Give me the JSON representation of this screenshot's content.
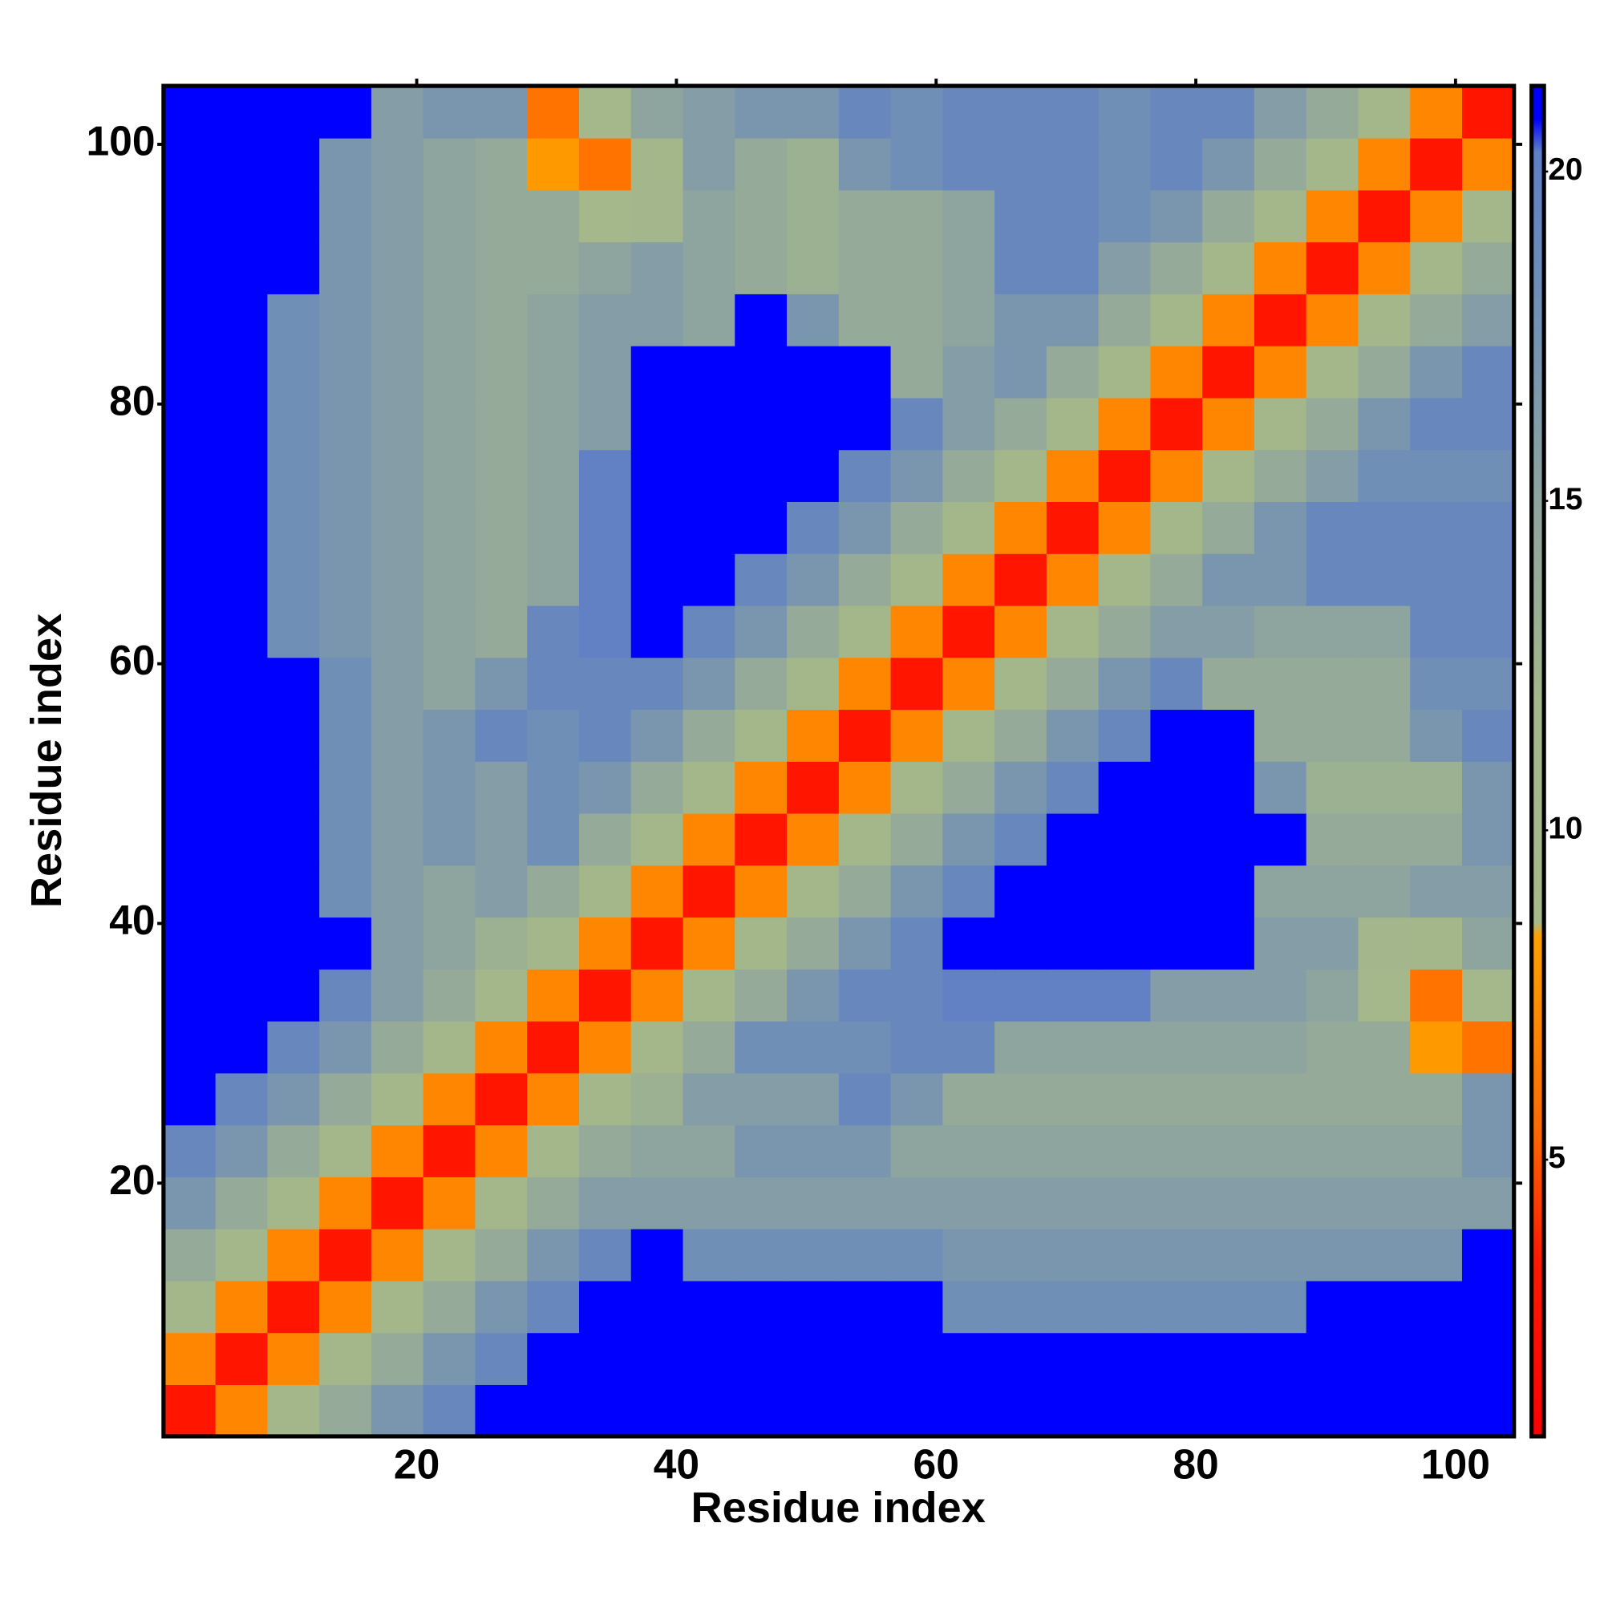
{
  "chart_data": {
    "type": "heatmap",
    "xlabel": "Residue index",
    "ylabel": "Residue index",
    "x_edges": [
      0.5,
      4.5,
      8.5,
      12.5,
      16.5,
      20.5,
      24.5,
      28.5,
      32.5,
      36.5,
      40.5,
      44.5,
      48.5,
      52.5,
      56.5,
      60.5,
      64.5,
      68.5,
      72.5,
      76.5,
      80.5,
      84.5,
      88.5,
      92.5,
      96.5,
      100.5,
      104.5
    ],
    "y_edges": [
      0.5,
      4.5,
      8.5,
      12.5,
      16.5,
      20.5,
      24.5,
      28.5,
      32.5,
      36.5,
      40.5,
      44.5,
      48.5,
      52.5,
      56.5,
      60.5,
      64.5,
      68.5,
      72.5,
      76.5,
      80.5,
      84.5,
      88.5,
      92.5,
      96.5,
      100.5,
      104.5
    ],
    "xlim": [
      0.5,
      104.5
    ],
    "ylim": [
      0.5,
      104.5
    ],
    "xticks": [
      20,
      40,
      60,
      80,
      100
    ],
    "yticks": [
      20,
      40,
      60,
      80,
      100
    ],
    "clim": [
      0.8,
      21.3
    ],
    "cticks": [
      5,
      10,
      15,
      20
    ],
    "colorscale": [
      [
        0.8,
        "#ff0000"
      ],
      [
        3.5,
        "#ff1a00"
      ],
      [
        5.5,
        "#ff6a00"
      ],
      [
        8.4,
        "#ffa000"
      ],
      [
        8.6,
        "#a6b98a"
      ],
      [
        12,
        "#a3b68c"
      ],
      [
        15,
        "#8ea49e"
      ],
      [
        18,
        "#6f8fb6"
      ],
      [
        20.3,
        "#5f7fc6"
      ],
      [
        20.8,
        "#0000ff"
      ],
      [
        21.3,
        "#0000ff"
      ]
    ],
    "values": [
      [
        3,
        7,
        11,
        14,
        17,
        19,
        21,
        21,
        21,
        21,
        21,
        21,
        21,
        21,
        21,
        21,
        21,
        21,
        21,
        21,
        21,
        21,
        21,
        21,
        21,
        21
      ],
      [
        7,
        3,
        7,
        11,
        14,
        17,
        19,
        21,
        21,
        21,
        21,
        21,
        21,
        21,
        21,
        21,
        21,
        21,
        21,
        21,
        21,
        21,
        21,
        21,
        21,
        21
      ],
      [
        11,
        7,
        3,
        7,
        11,
        14,
        17,
        19,
        21,
        21,
        21,
        21,
        21,
        21,
        21,
        18,
        18,
        18,
        18,
        18,
        18,
        18,
        21,
        21,
        21,
        21
      ],
      [
        14,
        11,
        7,
        3,
        7,
        11,
        14,
        17,
        19,
        21,
        18,
        18,
        18,
        18,
        18,
        17,
        17,
        17,
        17,
        17,
        17,
        17,
        17,
        17,
        17,
        21
      ],
      [
        17,
        14,
        11,
        7,
        3,
        7,
        11,
        14,
        16,
        16,
        16,
        16,
        16,
        16,
        16,
        16,
        16,
        16,
        16,
        16,
        16,
        16,
        16,
        16,
        16,
        16
      ],
      [
        19,
        17,
        14,
        11,
        7,
        3,
        7,
        11,
        14,
        15,
        15,
        17,
        17,
        17,
        15,
        15,
        15,
        15,
        15,
        15,
        15,
        15,
        15,
        15,
        15,
        17
      ],
      [
        21,
        19,
        17,
        14,
        11,
        7,
        3,
        7,
        11,
        13,
        16,
        16,
        16,
        19,
        17,
        14,
        14,
        14,
        14,
        14,
        14,
        14,
        14,
        14,
        14,
        17
      ],
      [
        21,
        21,
        19,
        17,
        14,
        11,
        7,
        3,
        7,
        11,
        14,
        18,
        18,
        18,
        19,
        19,
        15,
        15,
        15,
        15,
        15,
        15,
        14,
        14,
        8,
        6
      ],
      [
        21,
        21,
        21,
        19,
        16,
        14,
        11,
        7,
        3,
        7,
        11,
        14,
        17,
        19,
        19,
        20,
        20,
        20,
        20,
        16,
        16,
        16,
        15,
        10,
        6,
        10
      ],
      [
        21,
        21,
        21,
        21,
        16,
        15,
        13,
        11,
        7,
        3,
        7,
        11,
        14,
        17,
        19,
        21,
        21,
        21,
        21,
        21,
        21,
        16,
        16,
        12,
        11,
        15
      ],
      [
        21,
        21,
        21,
        18,
        16,
        15,
        16,
        14,
        11,
        7,
        3,
        7,
        11,
        14,
        17,
        19,
        21,
        21,
        21,
        21,
        21,
        15,
        15,
        15,
        16,
        16
      ],
      [
        21,
        21,
        21,
        18,
        16,
        17,
        16,
        18,
        14,
        11,
        7,
        3,
        7,
        11,
        14,
        17,
        19,
        21,
        21,
        21,
        21,
        21,
        14,
        14,
        14,
        17
      ],
      [
        21,
        21,
        21,
        18,
        16,
        17,
        16,
        18,
        17,
        14,
        11,
        7,
        3,
        7,
        11,
        14,
        17,
        19,
        21,
        21,
        21,
        17,
        13,
        13,
        13,
        17
      ],
      [
        21,
        21,
        21,
        18,
        16,
        17,
        19,
        18,
        19,
        17,
        14,
        11,
        7,
        3,
        7,
        11,
        14,
        17,
        19,
        21,
        21,
        14,
        14,
        14,
        17,
        19
      ],
      [
        21,
        21,
        21,
        18,
        16,
        15,
        17,
        19,
        19,
        19,
        17,
        14,
        11,
        7,
        3,
        7,
        11,
        14,
        17,
        19,
        14,
        14,
        14,
        14,
        18,
        18
      ],
      [
        21,
        21,
        18,
        17,
        16,
        15,
        14,
        19,
        20,
        21,
        19,
        17,
        14,
        11,
        7,
        3,
        7,
        11,
        14,
        16,
        16,
        15,
        15,
        15,
        19,
        19
      ],
      [
        21,
        21,
        18,
        17,
        16,
        15,
        14,
        15,
        20,
        21,
        21,
        19,
        17,
        14,
        11,
        7,
        3,
        7,
        11,
        14,
        17,
        17,
        19,
        19,
        19,
        19
      ],
      [
        21,
        21,
        18,
        17,
        16,
        15,
        14,
        15,
        20,
        21,
        21,
        21,
        19,
        17,
        14,
        11,
        7,
        3,
        7,
        11,
        14,
        17,
        19,
        19,
        19,
        19
      ],
      [
        21,
        21,
        18,
        17,
        16,
        15,
        14,
        15,
        20,
        21,
        21,
        21,
        21,
        19,
        17,
        14,
        11,
        7,
        3,
        7,
        11,
        14,
        16,
        18,
        18,
        18
      ],
      [
        21,
        21,
        18,
        17,
        16,
        15,
        14,
        15,
        16,
        21,
        21,
        21,
        21,
        21,
        19,
        16,
        14,
        11,
        7,
        3,
        7,
        11,
        14,
        17,
        19,
        19
      ],
      [
        21,
        21,
        18,
        17,
        16,
        15,
        14,
        15,
        16,
        21,
        21,
        21,
        21,
        21,
        14,
        16,
        17,
        14,
        11,
        7,
        3,
        7,
        11,
        14,
        17,
        19
      ],
      [
        21,
        21,
        18,
        17,
        16,
        15,
        14,
        15,
        16,
        16,
        15,
        21,
        17,
        14,
        14,
        15,
        17,
        17,
        14,
        11,
        7,
        3,
        7,
        11,
        14,
        16
      ],
      [
        21,
        21,
        21,
        17,
        16,
        15,
        14,
        14,
        15,
        16,
        15,
        14,
        13,
        14,
        14,
        15,
        19,
        19,
        16,
        14,
        11,
        7,
        3,
        7,
        11,
        14
      ],
      [
        21,
        21,
        21,
        17,
        16,
        15,
        14,
        14,
        10,
        12,
        15,
        14,
        13,
        14,
        14,
        15,
        19,
        19,
        18,
        17,
        14,
        11,
        7,
        3,
        7,
        11
      ],
      [
        21,
        21,
        21,
        17,
        16,
        15,
        14,
        8,
        6,
        11,
        16,
        14,
        13,
        17,
        18,
        19,
        19,
        19,
        18,
        19,
        17,
        14,
        11,
        7,
        3,
        7
      ],
      [
        21,
        21,
        21,
        21,
        16,
        17,
        17,
        6,
        10,
        15,
        16,
        17,
        17,
        19,
        18,
        19,
        19,
        19,
        18,
        19,
        19,
        16,
        14,
        11,
        7,
        3
      ]
    ]
  }
}
